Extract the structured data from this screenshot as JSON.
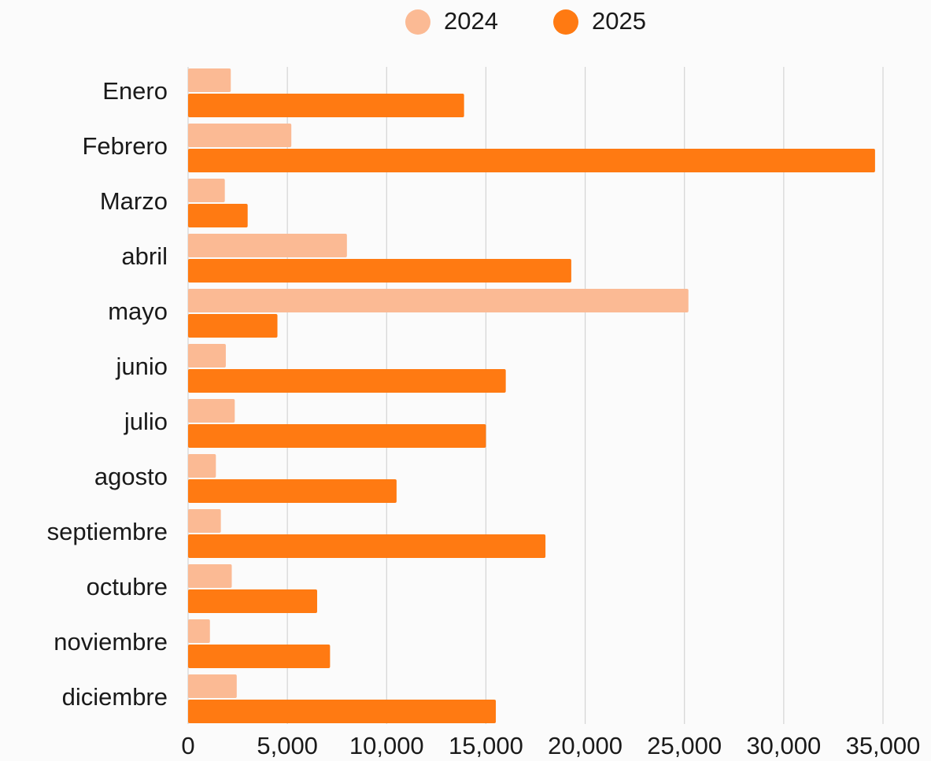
{
  "chart_data": {
    "type": "bar",
    "orientation": "horizontal",
    "categories": [
      "Enero",
      "Febrero",
      "Marzo",
      "abril",
      "mayo",
      "junio",
      "julio",
      "agosto",
      "septiembre",
      "octubre",
      "noviembre",
      "diciembre"
    ],
    "series": [
      {
        "name": "2024",
        "color": "#FBBA94",
        "values": [
          2150,
          5200,
          1850,
          8000,
          25200,
          1900,
          2350,
          1400,
          1650,
          2200,
          1100,
          2450
        ]
      },
      {
        "name": "2025",
        "color": "#FF7A12",
        "values": [
          13900,
          34600,
          3000,
          19300,
          4500,
          16000,
          15000,
          10500,
          18000,
          6500,
          7150,
          15500
        ]
      }
    ],
    "xlim": [
      0,
      35000
    ],
    "xticks": [
      0,
      5000,
      10000,
      15000,
      20000,
      25000,
      30000,
      35000
    ],
    "xtick_labels": [
      "0",
      "5,000",
      "10,000",
      "15,000",
      "20,000",
      "25,000",
      "30,000",
      "35,000"
    ],
    "grid": true,
    "legend_position": "top-center"
  }
}
